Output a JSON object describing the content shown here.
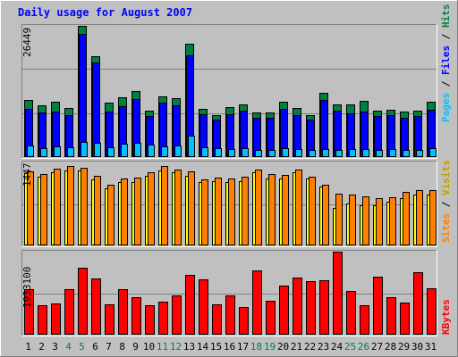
{
  "title": "Daily usage for August 2007",
  "colors": {
    "background": "#c0c0c0",
    "hits": "#008040",
    "files": "#0000ff",
    "pages": "#00c0ff",
    "visits": "#ffff00",
    "sites": "#ff8000",
    "kbytes": "#ff0000",
    "title": "#0000ff",
    "weekend": "#008040"
  },
  "chart_data": [
    {
      "type": "bar",
      "panel": "hits-files-pages",
      "ymax_label": "26449",
      "ylim": [
        0,
        26449
      ],
      "side_label": {
        "pages": "Pages",
        "files": "Files",
        "hits": "Hits",
        "sep": " / "
      },
      "categories": [
        "1",
        "2",
        "3",
        "4",
        "5",
        "6",
        "7",
        "8",
        "9",
        "10",
        "11",
        "12",
        "13",
        "14",
        "15",
        "16",
        "17",
        "18",
        "19",
        "20",
        "21",
        "22",
        "23",
        "24",
        "25",
        "26",
        "27",
        "28",
        "29",
        "30",
        "31"
      ],
      "series": [
        {
          "name": "Hits",
          "values": [
            11500,
            10500,
            11200,
            9900,
            26449,
            20300,
            11000,
            12000,
            13300,
            9400,
            12300,
            11800,
            22800,
            9700,
            8500,
            10000,
            10700,
            9000,
            9000,
            11200,
            9900,
            8500,
            13000,
            10600,
            10600,
            11300,
            9300,
            9500,
            9100,
            9300,
            11100
          ]
        },
        {
          "name": "Files",
          "values": [
            9800,
            9000,
            9200,
            8400,
            24800,
            19000,
            9200,
            10200,
            11700,
            8300,
            11000,
            10500,
            20500,
            8700,
            7500,
            8600,
            9300,
            8000,
            8000,
            9700,
            8500,
            7600,
            11500,
            9300,
            8800,
            9200,
            8200,
            8400,
            8000,
            8200,
            9600
          ]
        },
        {
          "name": "Pages",
          "values": [
            2300,
            1800,
            2200,
            2000,
            3100,
            2800,
            2000,
            2700,
            2800,
            2500,
            2100,
            2400,
            4300,
            1900,
            1800,
            1600,
            1800,
            1400,
            1500,
            1800,
            1600,
            1500,
            1700,
            1500,
            1600,
            1700,
            1500,
            1600,
            1500,
            1400,
            1800
          ]
        }
      ]
    },
    {
      "type": "bar",
      "panel": "visits-sites",
      "ymax_label": "1447",
      "ylim": [
        0,
        1447
      ],
      "side_label": {
        "sites": "Sites",
        "visits": "Visits",
        "sep": " / "
      },
      "categories": [
        "1",
        "2",
        "3",
        "4",
        "5",
        "6",
        "7",
        "8",
        "9",
        "10",
        "11",
        "12",
        "13",
        "14",
        "15",
        "16",
        "17",
        "18",
        "19",
        "20",
        "21",
        "22",
        "23",
        "24",
        "25",
        "26",
        "27",
        "28",
        "29",
        "30",
        "31"
      ],
      "series": [
        {
          "name": "Sites",
          "values": [
            1290,
            1250,
            1340,
            1390,
            1360,
            1210,
            1060,
            1170,
            1190,
            1280,
            1390,
            1330,
            1290,
            1150,
            1180,
            1170,
            1200,
            1330,
            1240,
            1230,
            1330,
            1200,
            1060,
            900,
            880,
            860,
            830,
            840,
            930,
            960,
            960
          ]
        },
        {
          "name": "Visits",
          "values": [
            1260,
            1200,
            1270,
            1310,
            1300,
            1150,
            1000,
            1110,
            1100,
            1220,
            1300,
            1270,
            1210,
            1100,
            1120,
            1110,
            1120,
            1270,
            1170,
            1170,
            1270,
            1160,
            1020,
            650,
            730,
            700,
            700,
            760,
            820,
            880,
            880
          ]
        }
      ]
    },
    {
      "type": "bar",
      "panel": "kbytes",
      "ymax_label": "1933100",
      "ylim": [
        0,
        1933100
      ],
      "side_label": {
        "kbytes": "KBytes"
      },
      "categories": [
        "1",
        "2",
        "3",
        "4",
        "5",
        "6",
        "7",
        "8",
        "9",
        "10",
        "11",
        "12",
        "13",
        "14",
        "15",
        "16",
        "17",
        "18",
        "19",
        "20",
        "21",
        "22",
        "23",
        "24",
        "25",
        "26",
        "27",
        "28",
        "29",
        "30",
        "31"
      ],
      "series": [
        {
          "name": "KBytes",
          "values": [
            1060000,
            690000,
            720000,
            1050000,
            1560000,
            1310000,
            710000,
            1050000,
            870000,
            680000,
            770000,
            910000,
            1400000,
            1280000,
            700000,
            920000,
            650000,
            1490000,
            780000,
            1140000,
            1330000,
            1240000,
            1260000,
            1933100,
            1020000,
            680000,
            1360000,
            880000,
            750000,
            1460000,
            1080000
          ]
        }
      ]
    }
  ],
  "weekend_days": [
    4,
    5,
    11,
    12,
    18,
    19,
    25,
    26
  ]
}
